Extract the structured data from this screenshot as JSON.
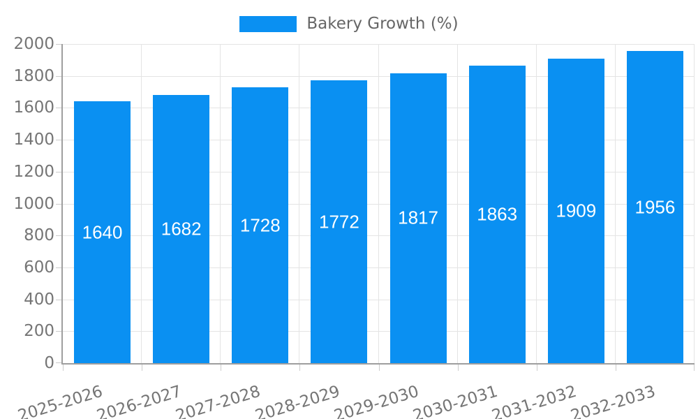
{
  "legend": {
    "label": "Bakery Growth (%)"
  },
  "chart_data": {
    "type": "bar",
    "title": "Bakery Growth (%)",
    "series": [
      {
        "name": "Bakery Growth (%)",
        "values": [
          1640,
          1682,
          1728,
          1772,
          1817,
          1863,
          1909,
          1956
        ]
      }
    ],
    "categories": [
      "2025-2026",
      "2026-2027",
      "2027-2028",
      "2028-2029",
      "2029-2030",
      "2030-2031",
      "2031-2032",
      "2032-2033"
    ],
    "xlabel": "",
    "ylabel": "",
    "ylim": [
      0,
      2000
    ],
    "ytick_step": 200,
    "ytick_labels": [
      "0",
      "200",
      "400",
      "600",
      "800",
      "1000",
      "1200",
      "1400",
      "1600",
      "1800",
      "2000"
    ],
    "grid": true,
    "legend_position": "top",
    "bar_color": "#0a90f2",
    "value_label_color": "#ffffff",
    "value_labels_shown": true
  }
}
